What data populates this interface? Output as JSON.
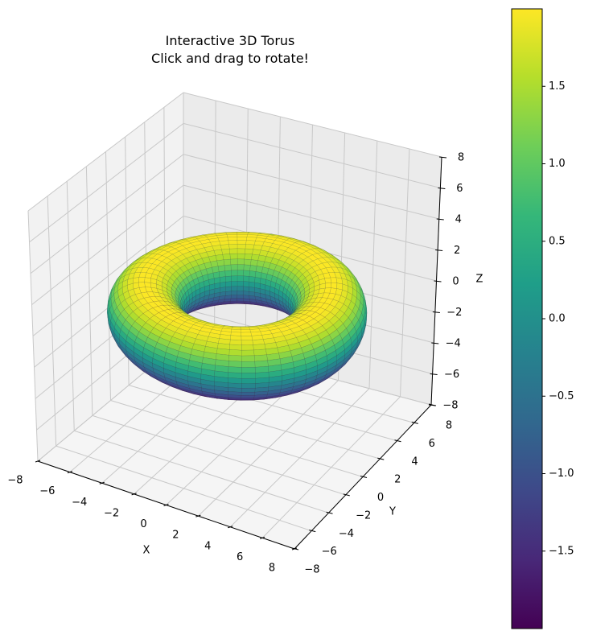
{
  "title": {
    "line1": "Interactive 3D Torus",
    "line2": "Click and drag to rotate!"
  },
  "chart_data": {
    "type": "surface3d",
    "title": "Interactive 3D Torus\nClick and drag to rotate!",
    "surface": {
      "shape": "torus",
      "major_radius": 5,
      "minor_radius": 2,
      "center": [
        0,
        0,
        0
      ],
      "color_by": "distance-based value ranging -2 to 2 (viridis)",
      "colormap": "viridis"
    },
    "xlabel": "X",
    "ylabel": "Y",
    "zlabel": "Z",
    "xlim": [
      -8,
      8
    ],
    "ylim": [
      -8,
      8
    ],
    "zlim": [
      -8,
      8
    ],
    "xticks": [
      "−8",
      "−6",
      "−4",
      "−2",
      "0",
      "2",
      "4",
      "6",
      "8"
    ],
    "yticks": [
      "−8",
      "−6",
      "−4",
      "−2",
      "0",
      "2",
      "4",
      "6",
      "8"
    ],
    "zticks": [
      "−8",
      "−6",
      "−4",
      "−2",
      "0",
      "2",
      "4",
      "6",
      "8"
    ],
    "grid": true,
    "colorbar": {
      "range": [
        -2,
        2
      ],
      "ticks": [
        "1.5",
        "1.0",
        "0.5",
        "0.0",
        "−0.5",
        "−1.0",
        "−1.5"
      ],
      "tick_values": [
        1.5,
        1.0,
        0.5,
        0.0,
        -0.5,
        -1.0,
        -1.5
      ],
      "colors": [
        "#440154",
        "#482878",
        "#3e4989",
        "#31688e",
        "#26828e",
        "#1f9e89",
        "#35b779",
        "#6ece58",
        "#b5de2b",
        "#fde725"
      ]
    }
  },
  "colors": {
    "pane_left": "#f2f2f2",
    "pane_back": "#ebebeb",
    "pane_floor": "#f5f5f5",
    "grid": "#c8c8c8",
    "axis": "#000000"
  }
}
